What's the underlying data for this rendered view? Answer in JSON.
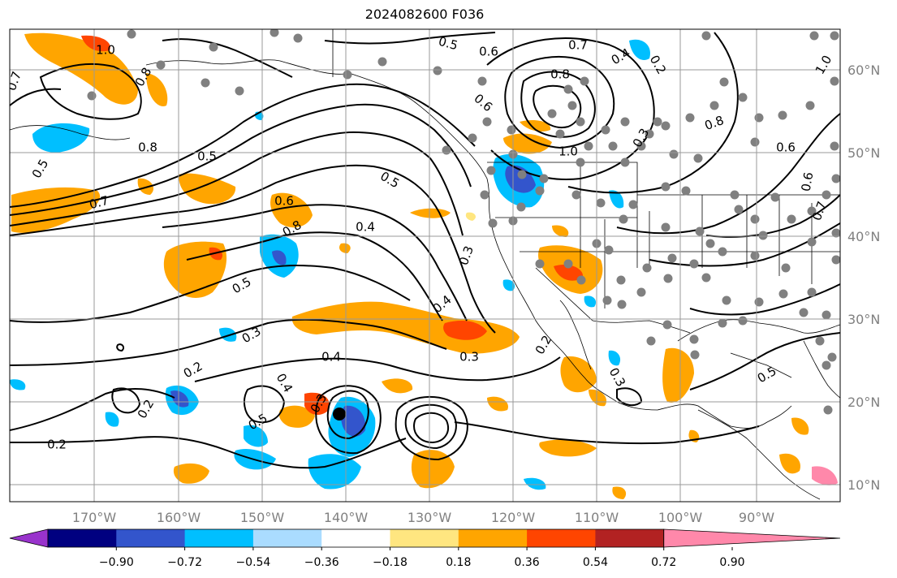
{
  "title": "2024082600 F036",
  "colors": {
    "map_background": "#ffffff",
    "contour": "#000000",
    "grid": "#999999",
    "station_dot": "#808080",
    "storm_marker": "#000000"
  },
  "axes": {
    "lon_labels": [
      "170°W",
      "160°W",
      "150°W",
      "140°W",
      "130°W",
      "120°W",
      "110°W",
      "100°W",
      "90°W"
    ],
    "lat_labels": [
      "60°N",
      "50°N",
      "40°N",
      "30°N",
      "20°N",
      "10°N"
    ]
  },
  "colorbar": {
    "colors": [
      "#9933cc",
      "#000080",
      "#3355cc",
      "#00bfff",
      "#aadcff",
      "#ffffff",
      "#ffe680",
      "#ffa500",
      "#ff4500",
      "#b22222",
      "#ff88aa"
    ],
    "tick_labels": [
      "−0.90",
      "−0.72",
      "−0.54",
      "−0.36",
      "−0.18",
      "0.18",
      "0.36",
      "0.54",
      "0.72",
      "0.90"
    ]
  },
  "contour_labels": [
    "0.5",
    "0.6",
    "0.7",
    "0.5",
    "0.6",
    "0.8",
    "1.0",
    "0.4",
    "0.2",
    "0.3",
    "1.0",
    "0.8",
    "0.7",
    "0.5",
    "0.5",
    "0.7",
    "0.8",
    "0.6",
    "0.8",
    "0.4",
    "0.3",
    "0.5",
    "0.3",
    "0.4",
    "0.4",
    "0.3",
    "0.2",
    "0.4",
    "0.2",
    "0.3",
    "0.5",
    "0.2",
    "0.2",
    "0.3",
    "0.5",
    "0.8",
    "0.6",
    "0.7",
    "1.0",
    "0.6"
  ]
}
